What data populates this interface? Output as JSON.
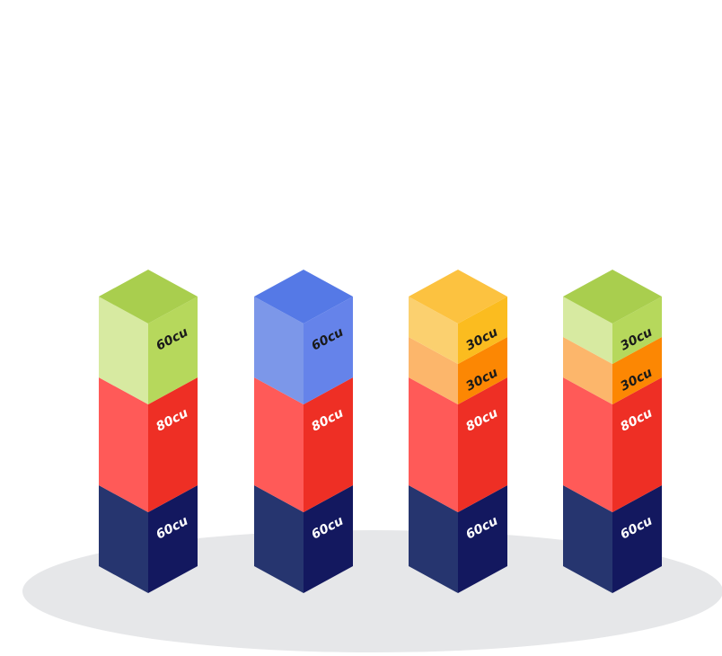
{
  "colors": {
    "ground": "#e6e7e9",
    "navy": {
      "top": "#1c2463",
      "left": "#26356f",
      "right": "#13185f",
      "text": "#ffffff"
    },
    "red": {
      "top": "#f24a40",
      "left": "#ff5a58",
      "right": "#ee2f25",
      "text": "#ffffff"
    },
    "green": {
      "top": "#a9ce4e",
      "left": "#d7eaa1",
      "right": "#b6d85c",
      "text": "#1a1a1a"
    },
    "blue": {
      "top": "#5579e6",
      "left": "#7c97e9",
      "right": "#6583ea",
      "text": "#1a1a1a"
    },
    "yellow": {
      "top": "#fcc240",
      "left": "#fbd06f",
      "right": "#fbbc1f",
      "text": "#1a1a1a"
    },
    "orange": {
      "top": "#fba045",
      "left": "#fcb66b",
      "right": "#fc8703",
      "text": "#1a1a1a"
    }
  },
  "columns": [
    {
      "segments": [
        {
          "label": "60cu",
          "value": 60,
          "color": "navy"
        },
        {
          "label": "80cu",
          "value": 80,
          "color": "red"
        },
        {
          "label": "60cu",
          "value": 60,
          "color": "green"
        }
      ]
    },
    {
      "segments": [
        {
          "label": "60cu",
          "value": 60,
          "color": "navy"
        },
        {
          "label": "80cu",
          "value": 80,
          "color": "red"
        },
        {
          "label": "60cu",
          "value": 60,
          "color": "blue"
        }
      ]
    },
    {
      "segments": [
        {
          "label": "60cu",
          "value": 60,
          "color": "navy"
        },
        {
          "label": "80cu",
          "value": 80,
          "color": "red"
        },
        {
          "label": "30cu",
          "value": 30,
          "color": "orange"
        },
        {
          "label": "30cu",
          "value": 30,
          "color": "yellow"
        }
      ]
    },
    {
      "segments": [
        {
          "label": "60cu",
          "value": 60,
          "color": "navy"
        },
        {
          "label": "80cu",
          "value": 80,
          "color": "red"
        },
        {
          "label": "30cu",
          "value": 30,
          "color": "orange"
        },
        {
          "label": "30cu",
          "value": 30,
          "color": "green"
        }
      ]
    }
  ]
}
